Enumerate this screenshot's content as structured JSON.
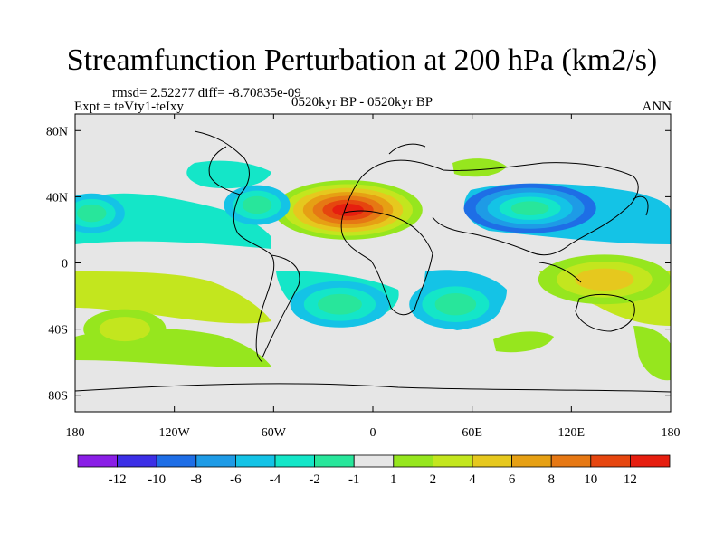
{
  "chart_data": {
    "type": "heatmap",
    "title": "Streamfunction Perturbation at 200 hPa (km2/s)",
    "stats_text": "rmsd= 2.52277 diff= -8.70835e-09",
    "expt_text": "Expt = teVty1-teIxy",
    "period_text": "0520kyr BP - 0520kyr BP",
    "season_text": "ANN",
    "x_range": [
      -180,
      180
    ],
    "y_range": [
      -90,
      90
    ],
    "x_ticks": [
      {
        "value": -180,
        "label": "180"
      },
      {
        "value": -120,
        "label": "120W"
      },
      {
        "value": -60,
        "label": "60W"
      },
      {
        "value": 0,
        "label": "0"
      },
      {
        "value": 60,
        "label": "60E"
      },
      {
        "value": 120,
        "label": "120E"
      },
      {
        "value": 180,
        "label": "180"
      }
    ],
    "y_ticks": [
      {
        "value": 80,
        "label": "80N"
      },
      {
        "value": 40,
        "label": "40N"
      },
      {
        "value": 0,
        "label": "0"
      },
      {
        "value": -40,
        "label": "40S"
      },
      {
        "value": -80,
        "label": "80S"
      }
    ],
    "colorbar": {
      "colors": [
        "#8a1ee6",
        "#3c2fe6",
        "#1e6ee6",
        "#1e9be6",
        "#14c3e6",
        "#14e6c8",
        "#28e69b",
        "#e6e6e6",
        "#96e61e",
        "#c3e61e",
        "#e6c81e",
        "#e6a014",
        "#e67814",
        "#e6460f",
        "#e61e0f"
      ],
      "labels": [
        "-12",
        "-10",
        "-8",
        "-6",
        "-4",
        "-2",
        "-1",
        "1",
        "2",
        "4",
        "6",
        "8",
        "10",
        "12"
      ]
    },
    "features": [
      {
        "name": "north-africa-high",
        "lon": -15,
        "lat": 32,
        "rlon": 45,
        "rlat": 18,
        "value": 12
      },
      {
        "name": "central-asia-low",
        "lon": 95,
        "lat": 33,
        "rlon": 40,
        "rlat": 15,
        "value": -8
      },
      {
        "name": "north-atlantic-low",
        "lon": -70,
        "lat": 35,
        "rlon": 20,
        "rlat": 12,
        "value": -4
      },
      {
        "name": "north-pacific-low",
        "lon": -170,
        "lat": 30,
        "rlon": 20,
        "rlat": 12,
        "value": -4
      },
      {
        "name": "south-atlantic-low",
        "lon": -20,
        "lat": -25,
        "rlon": 30,
        "rlat": 14,
        "value": -4
      },
      {
        "name": "south-indian-low",
        "lon": 50,
        "lat": -25,
        "rlon": 28,
        "rlat": 15,
        "value": -4
      },
      {
        "name": "maritime-continent-high",
        "lon": 140,
        "lat": -10,
        "rlon": 40,
        "rlat": 15,
        "value": 4
      },
      {
        "name": "south-pacific-high",
        "lon": -150,
        "lat": -40,
        "rlon": 25,
        "rlat": 12,
        "value": 2
      }
    ]
  }
}
